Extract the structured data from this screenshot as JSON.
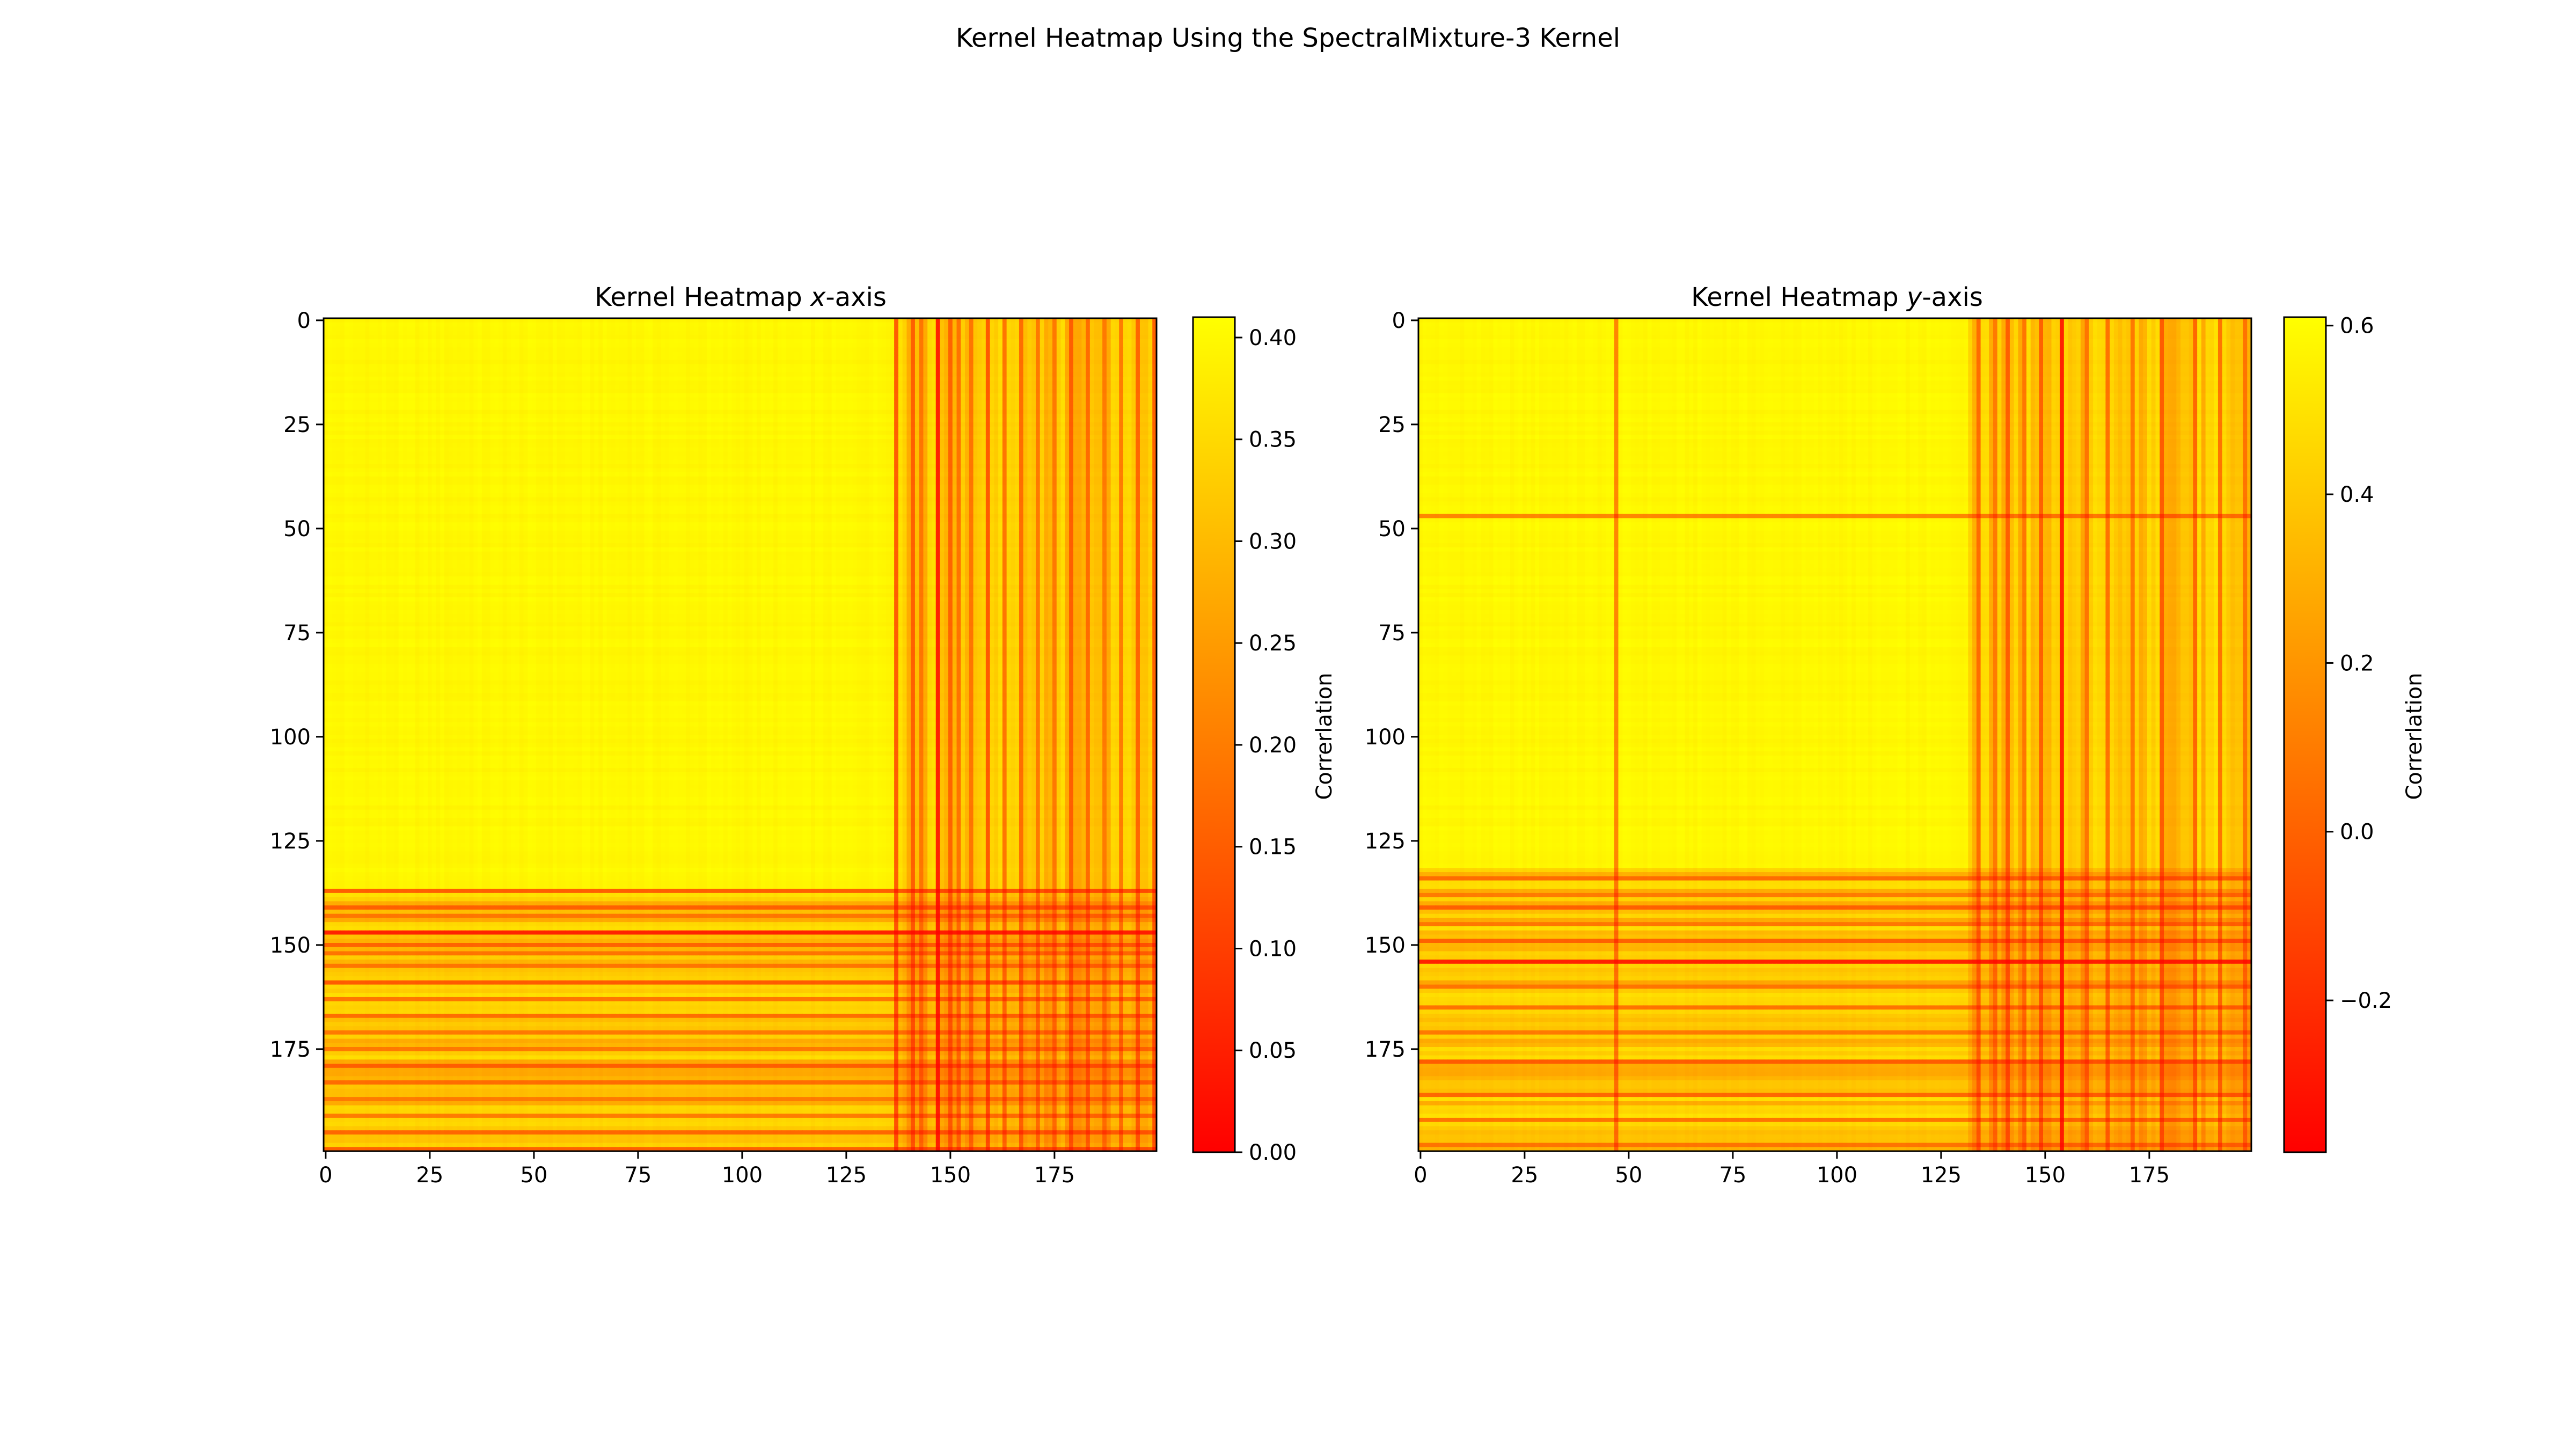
{
  "figure": {
    "suptitle": "Kernel Heatmap Using the SpectralMixture-3 Kernel"
  },
  "chart_data": [
    {
      "type": "heatmap",
      "title_prefix": "Kernel Heatmap ",
      "title_var": "x",
      "title_suffix": "-axis",
      "matrix_size": 200,
      "x_ticks": [
        0,
        25,
        50,
        75,
        100,
        125,
        150,
        175
      ],
      "y_ticks": [
        0,
        25,
        50,
        75,
        100,
        125,
        150,
        175
      ],
      "colorbar": {
        "label": "Correlation",
        "display_label": "Correrlation",
        "range": [
          0.0,
          0.41
        ],
        "ticks": [
          0.0,
          0.05,
          0.1,
          0.15,
          0.2,
          0.25,
          0.3,
          0.35,
          0.4
        ],
        "tick_labels": [
          "0.00",
          "0.05",
          "0.10",
          "0.15",
          "0.20",
          "0.25",
          "0.30",
          "0.35",
          "0.40"
        ],
        "colormap": "autumn"
      },
      "structure": {
        "high_block": [
          0,
          137
        ],
        "low_stripe_indices": [
          137,
          141,
          143,
          147,
          150,
          152,
          155,
          159,
          163,
          167,
          171,
          175,
          179,
          183,
          187,
          191,
          195,
          199
        ],
        "strongest_low_index": 147
      }
    },
    {
      "type": "heatmap",
      "title_prefix": "Kernel Heatmap ",
      "title_var": "y",
      "title_suffix": "-axis",
      "matrix_size": 200,
      "x_ticks": [
        0,
        25,
        50,
        75,
        100,
        125,
        150,
        175
      ],
      "y_ticks": [
        0,
        25,
        50,
        75,
        100,
        125,
        150,
        175
      ],
      "colorbar": {
        "label": "Correlation",
        "display_label": "Correrlation",
        "range": [
          -0.38,
          0.61
        ],
        "ticks": [
          -0.2,
          0.0,
          0.2,
          0.4,
          0.6
        ],
        "tick_labels": [
          "−0.2",
          "0.0",
          "0.2",
          "0.4",
          "0.6"
        ],
        "colormap": "autumn"
      },
      "structure": {
        "high_block": [
          0,
          132
        ],
        "low_stripe_indices": [
          47,
          134,
          138,
          141,
          145,
          149,
          154,
          160,
          165,
          171,
          178,
          186,
          192,
          198
        ],
        "strongest_low_index": 154
      }
    }
  ]
}
